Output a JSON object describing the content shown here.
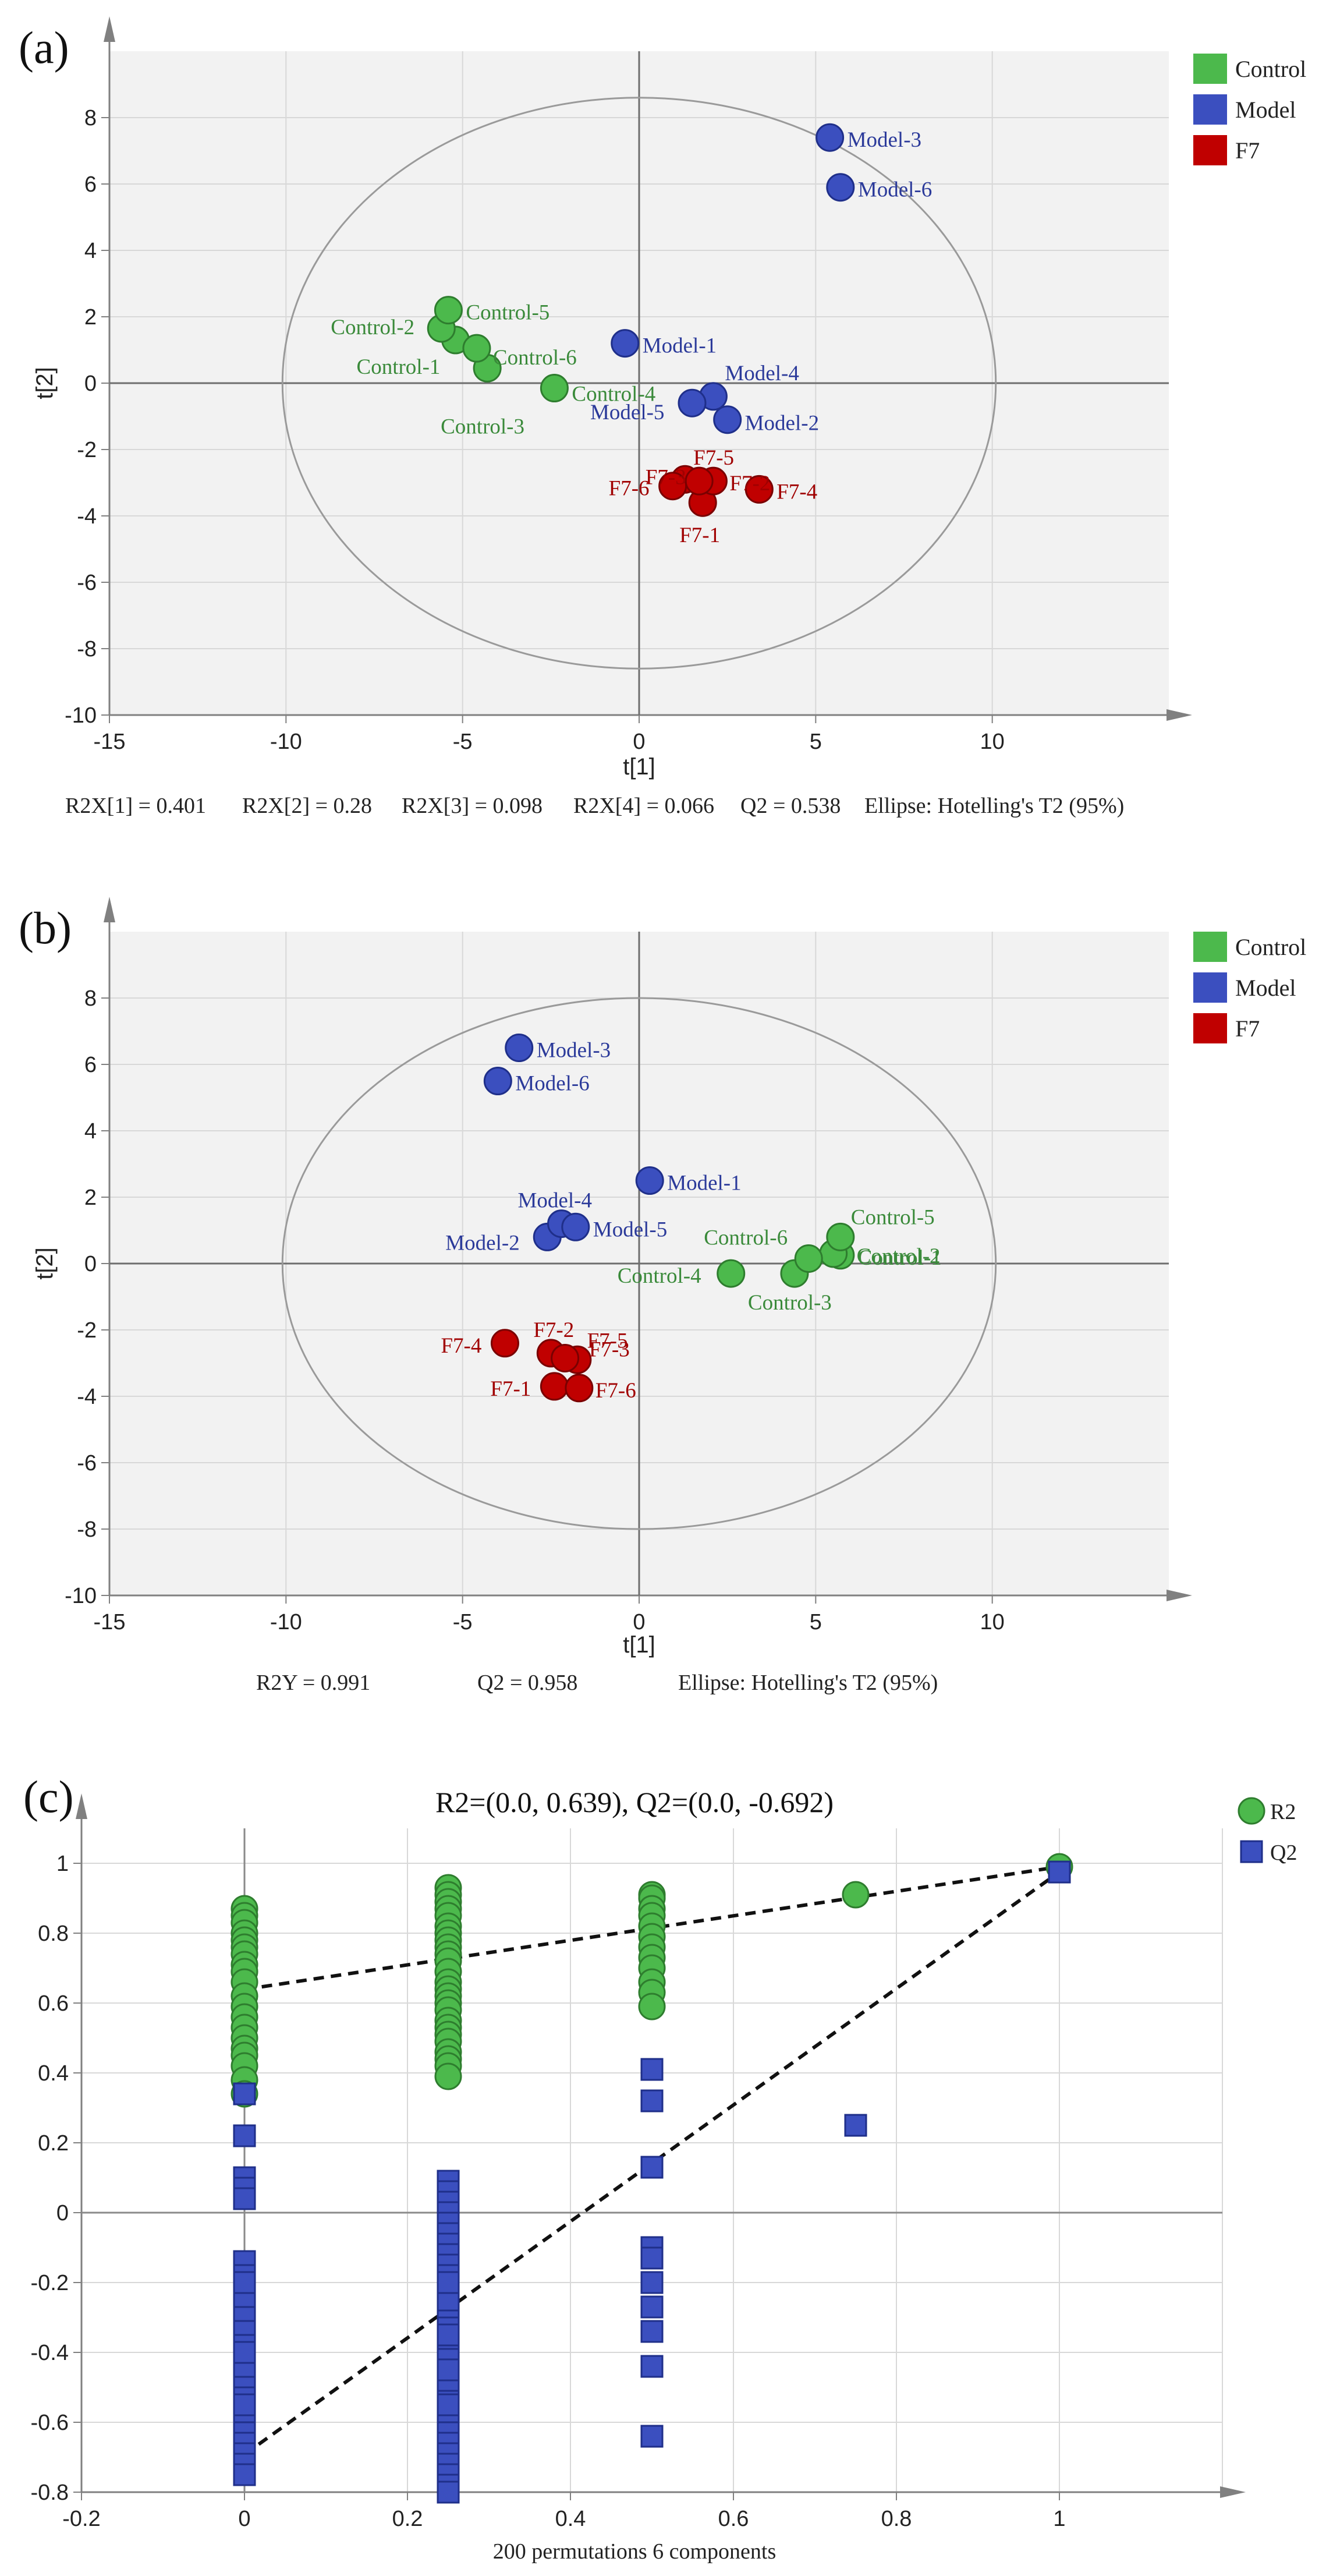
{
  "colors": {
    "control": "#4cb94c",
    "model": "#3b4fbf",
    "f7": "#c00000",
    "control_text": "#3a8a3a",
    "model_text": "#2b3a9a",
    "f7_text": "#a00000",
    "plot_bg": "#f2f2f2",
    "grid": "#d8d8d8",
    "axis": "#808080"
  },
  "chart_data": [
    {
      "type": "scatter",
      "panel_label": "(a)",
      "xlabel": "t[1]",
      "ylabel": "t[2]",
      "xlim": [
        -15,
        15
      ],
      "ylim": [
        -10,
        10
      ],
      "xticks": [
        -15,
        -10,
        -5,
        0,
        5,
        10
      ],
      "yticks": [
        -10,
        -8,
        -6,
        -4,
        -2,
        0,
        2,
        4,
        6,
        8
      ],
      "grid": true,
      "legend_position": "top-right",
      "ellipse": {
        "cx": 0,
        "cy": 0,
        "rx": 10.1,
        "ry": 8.6
      },
      "footer": [
        "R2X[1] = 0.401",
        "R2X[2] = 0.28",
        "R2X[3] = 0.098",
        "R2X[4] = 0.066",
        "Q2 = 0.538",
        "Ellipse: Hotelling's T2 (95%)"
      ],
      "series": [
        {
          "name": "Control",
          "points": [
            {
              "label": "Control-1",
              "x": -5.2,
              "y": 1.3
            },
            {
              "label": "Control-2",
              "x": -5.6,
              "y": 1.65
            },
            {
              "label": "Control-3",
              "x": -4.3,
              "y": 0.45
            },
            {
              "label": "Control-4",
              "x": -2.4,
              "y": -0.15
            },
            {
              "label": "Control-5",
              "x": -5.4,
              "y": 2.2
            },
            {
              "label": "Control-6",
              "x": -4.6,
              "y": 1.05
            }
          ]
        },
        {
          "name": "Model",
          "points": [
            {
              "label": "Model-1",
              "x": -0.4,
              "y": 1.2
            },
            {
              "label": "Model-2",
              "x": 2.5,
              "y": -1.1
            },
            {
              "label": "Model-3",
              "x": 5.4,
              "y": 7.4
            },
            {
              "label": "Model-4",
              "x": 2.1,
              "y": -0.4
            },
            {
              "label": "Model-5",
              "x": 1.5,
              "y": -0.6
            },
            {
              "label": "Model-6",
              "x": 5.7,
              "y": 5.9
            }
          ]
        },
        {
          "name": "F7",
          "points": [
            {
              "label": "F7-1",
              "x": 1.8,
              "y": -3.6
            },
            {
              "label": "F7-2",
              "x": 2.1,
              "y": -2.95
            },
            {
              "label": "F7-3",
              "x": 1.3,
              "y": -2.9
            },
            {
              "label": "F7-4",
              "x": 3.4,
              "y": -3.2
            },
            {
              "label": "F7-5",
              "x": 1.7,
              "y": -2.95
            },
            {
              "label": "F7-6",
              "x": 0.95,
              "y": -3.1
            }
          ]
        }
      ]
    },
    {
      "type": "scatter",
      "panel_label": "(b)",
      "xlabel": "t[1]",
      "ylabel": "t[2]",
      "xlim": [
        -15,
        15
      ],
      "ylim": [
        -10,
        10
      ],
      "xticks": [
        -15,
        -10,
        -5,
        0,
        5,
        10
      ],
      "yticks": [
        -10,
        -8,
        -6,
        -4,
        -2,
        0,
        2,
        4,
        6,
        8
      ],
      "grid": true,
      "legend_position": "top-right",
      "ellipse": {
        "cx": 0,
        "cy": 0,
        "rx": 10.1,
        "ry": 8.0
      },
      "footer": [
        "R2Y = 0.991",
        "Q2 = 0.958",
        "Ellipse: Hotelling's T2 (95%)"
      ],
      "series": [
        {
          "name": "Control",
          "points": [
            {
              "label": "Control-1",
              "x": 5.7,
              "y": 0.25
            },
            {
              "label": "Control-2",
              "x": 5.5,
              "y": 0.3
            },
            {
              "label": "Control-3",
              "x": 4.4,
              "y": -0.3
            },
            {
              "label": "Control-4",
              "x": 2.6,
              "y": -0.3
            },
            {
              "label": "Control-5",
              "x": 5.7,
              "y": 0.8
            },
            {
              "label": "Control-6",
              "x": 4.8,
              "y": 0.15
            }
          ]
        },
        {
          "name": "Model",
          "points": [
            {
              "label": "Model-1",
              "x": 0.3,
              "y": 2.5
            },
            {
              "label": "Model-2",
              "x": -2.6,
              "y": 0.8
            },
            {
              "label": "Model-3",
              "x": -3.4,
              "y": 6.5
            },
            {
              "label": "Model-4",
              "x": -2.2,
              "y": 1.2
            },
            {
              "label": "Model-5",
              "x": -1.8,
              "y": 1.1
            },
            {
              "label": "Model-6",
              "x": -4.0,
              "y": 5.5
            }
          ]
        },
        {
          "name": "F7",
          "points": [
            {
              "label": "F7-1",
              "x": -2.4,
              "y": -3.7
            },
            {
              "label": "F7-2",
              "x": -2.5,
              "y": -2.7
            },
            {
              "label": "F7-3",
              "x": -1.75,
              "y": -2.9
            },
            {
              "label": "F7-4",
              "x": -3.8,
              "y": -2.4
            },
            {
              "label": "F7-5",
              "x": -2.1,
              "y": -2.85
            },
            {
              "label": "F7-6",
              "x": -1.7,
              "y": -3.75
            }
          ]
        }
      ]
    },
    {
      "type": "scatter",
      "panel_label": "(c)",
      "title": "R2=(0.0, 0.639), Q2=(0.0, -0.692)",
      "xlabel": "200 permutations 6 components",
      "ylabel": "",
      "xlim": [
        -0.2,
        1.2
      ],
      "ylim": [
        -0.8,
        1.1
      ],
      "xticks": [
        -0.2,
        0,
        0.2,
        0.4,
        0.6,
        0.8,
        1
      ],
      "yticks": [
        -0.8,
        -0.6,
        -0.4,
        -0.2,
        0,
        0.2,
        0.4,
        0.6,
        0.8,
        1
      ],
      "grid": true,
      "legend_position": "top-right",
      "regression_lines": [
        {
          "name": "R2",
          "x": [
            0,
            1
          ],
          "y": [
            0.639,
            0.99
          ]
        },
        {
          "name": "Q2",
          "x": [
            0,
            1
          ],
          "y": [
            -0.692,
            0.975
          ]
        }
      ],
      "series": [
        {
          "name": "R2",
          "x": [
            0,
            0,
            0,
            0,
            0,
            0,
            0,
            0,
            0,
            0,
            0,
            0,
            0,
            0,
            0,
            0,
            0,
            0,
            0,
            0,
            0.25,
            0.25,
            0.25,
            0.25,
            0.25,
            0.25,
            0.25,
            0.25,
            0.25,
            0.25,
            0.25,
            0.25,
            0.25,
            0.25,
            0.25,
            0.25,
            0.25,
            0.25,
            0.25,
            0.25,
            0.25,
            0.25,
            0.25,
            0.25,
            0.25,
            0.5,
            0.5,
            0.5,
            0.5,
            0.5,
            0.5,
            0.5,
            0.5,
            0.5,
            0.5,
            0.5,
            0.5,
            0.75,
            1
          ],
          "y": [
            0.87,
            0.85,
            0.83,
            0.8,
            0.78,
            0.76,
            0.74,
            0.71,
            0.69,
            0.66,
            0.62,
            0.59,
            0.56,
            0.53,
            0.5,
            0.47,
            0.45,
            0.42,
            0.38,
            0.34,
            0.93,
            0.91,
            0.89,
            0.87,
            0.85,
            0.82,
            0.8,
            0.78,
            0.76,
            0.74,
            0.72,
            0.69,
            0.66,
            0.64,
            0.62,
            0.6,
            0.58,
            0.55,
            0.53,
            0.51,
            0.49,
            0.46,
            0.44,
            0.42,
            0.39,
            0.91,
            0.9,
            0.87,
            0.85,
            0.82,
            0.79,
            0.76,
            0.73,
            0.7,
            0.66,
            0.63,
            0.59,
            0.91,
            0.99
          ]
        },
        {
          "name": "Q2",
          "x": [
            0,
            0,
            0,
            0,
            0,
            0,
            0,
            0,
            0,
            0,
            0,
            0,
            0,
            0,
            0,
            0,
            0,
            0,
            0,
            0,
            0,
            0,
            0,
            0,
            0,
            0,
            0.25,
            0.25,
            0.25,
            0.25,
            0.25,
            0.25,
            0.25,
            0.25,
            0.25,
            0.25,
            0.25,
            0.25,
            0.25,
            0.25,
            0.25,
            0.25,
            0.25,
            0.25,
            0.25,
            0.25,
            0.25,
            0.25,
            0.25,
            0.25,
            0.25,
            0.25,
            0.25,
            0.25,
            0.25,
            0.25,
            0.25,
            0.25,
            0.25,
            0.25,
            0.25,
            0.25,
            0.5,
            0.5,
            0.5,
            0.5,
            0.5,
            0.5,
            0.5,
            0.5,
            0.5,
            0.5,
            0.75,
            1
          ],
          "y": [
            0.34,
            0.22,
            0.1,
            0.07,
            0.04,
            -0.14,
            -0.18,
            -0.22,
            -0.26,
            -0.3,
            -0.34,
            -0.38,
            -0.42,
            -0.46,
            -0.5,
            -0.53,
            -0.56,
            -0.6,
            -0.63,
            -0.66,
            -0.69,
            -0.72,
            -0.75,
            -0.4,
            -0.2,
            -0.55,
            0.09,
            0.06,
            0.03,
            0.0,
            -0.03,
            -0.06,
            -0.09,
            -0.12,
            -0.15,
            -0.18,
            -0.21,
            -0.24,
            -0.27,
            -0.3,
            -0.33,
            -0.36,
            -0.39,
            -0.42,
            -0.45,
            -0.48,
            -0.51,
            -0.54,
            -0.57,
            -0.6,
            -0.63,
            -0.66,
            -0.69,
            -0.72,
            -0.75,
            -0.78,
            -0.8,
            -0.25,
            -0.35,
            -0.45,
            -0.55,
            -0.2,
            0.41,
            0.32,
            0.13,
            -0.1,
            -0.13,
            -0.2,
            -0.27,
            -0.34,
            -0.44,
            -0.64,
            0.25,
            0.975
          ]
        }
      ]
    }
  ]
}
